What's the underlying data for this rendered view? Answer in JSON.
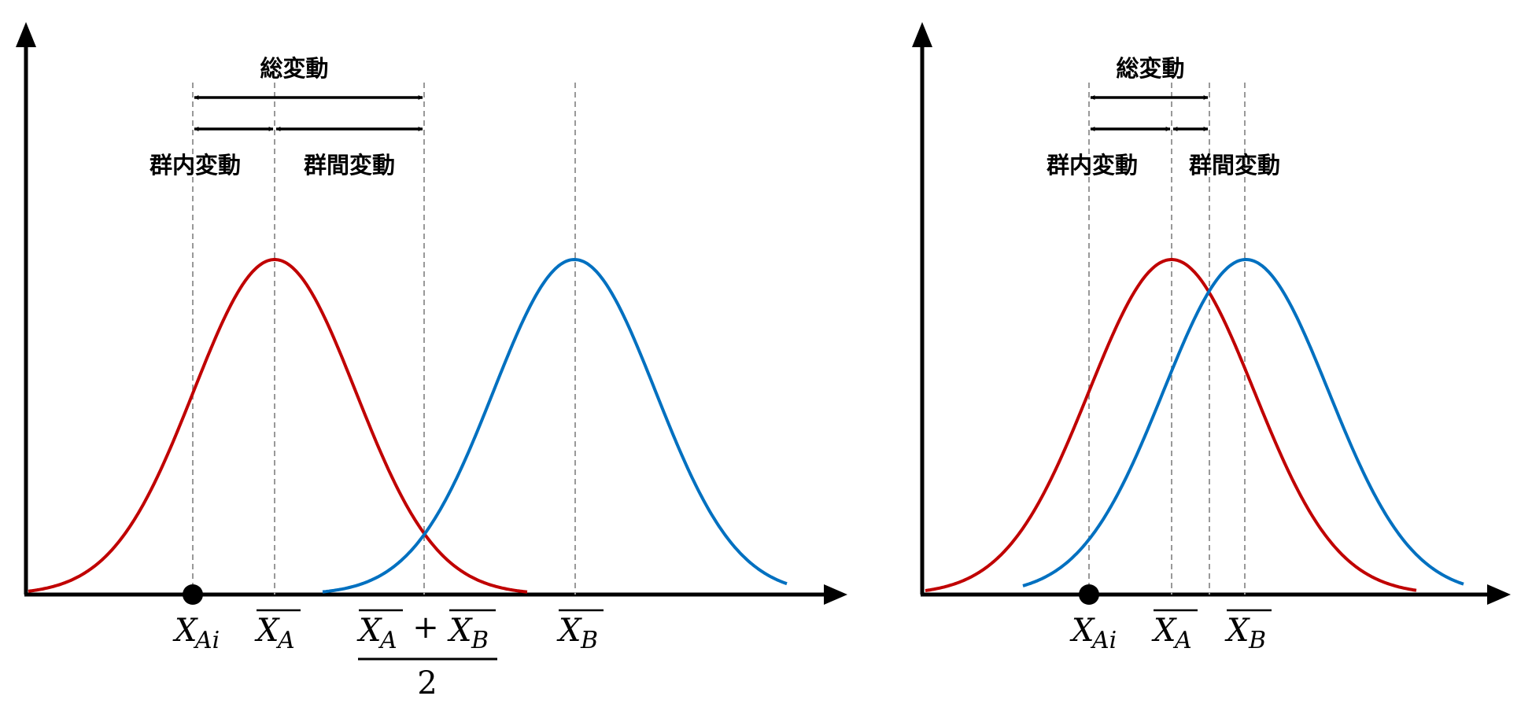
{
  "colors": {
    "group_a": "#c00000",
    "group_b": "#0070c0",
    "axis": "#000000",
    "guide": "#999999"
  },
  "icons": {
    "sample_point": "filled-circle-icon"
  },
  "left_panel": {
    "labels": {
      "total_variation": "総変動",
      "within_group": "群内変動",
      "between_group": "群間変動"
    },
    "axis_labels": {
      "xai_main": "X",
      "xai_sub": "Ai",
      "xa_main": "X",
      "xa_sub": "A",
      "grand_num_a_main": "X",
      "grand_num_a_sub": "A",
      "grand_plus": "+",
      "grand_num_b_main": "X",
      "grand_num_b_sub": "B",
      "grand_den": "2",
      "xb_main": "X",
      "xb_sub": "B"
    },
    "curves": [
      {
        "name": "group-a",
        "mean": 0,
        "sd": 1
      },
      {
        "name": "group-b",
        "mean": 3.7,
        "sd": 1
      }
    ],
    "sample_value": -1
  },
  "right_panel": {
    "labels": {
      "total_variation": "総変動",
      "within_group": "群内変動",
      "between_group": "群間変動"
    },
    "axis_labels": {
      "xai_main": "X",
      "xai_sub": "Ai",
      "xa_main": "X",
      "xa_sub": "A",
      "xb_main": "X",
      "xb_sub": "B"
    },
    "curves": [
      {
        "name": "group-a",
        "mean": 0,
        "sd": 1
      },
      {
        "name": "group-b",
        "mean": 0.9,
        "sd": 1
      }
    ],
    "sample_value": -1
  }
}
